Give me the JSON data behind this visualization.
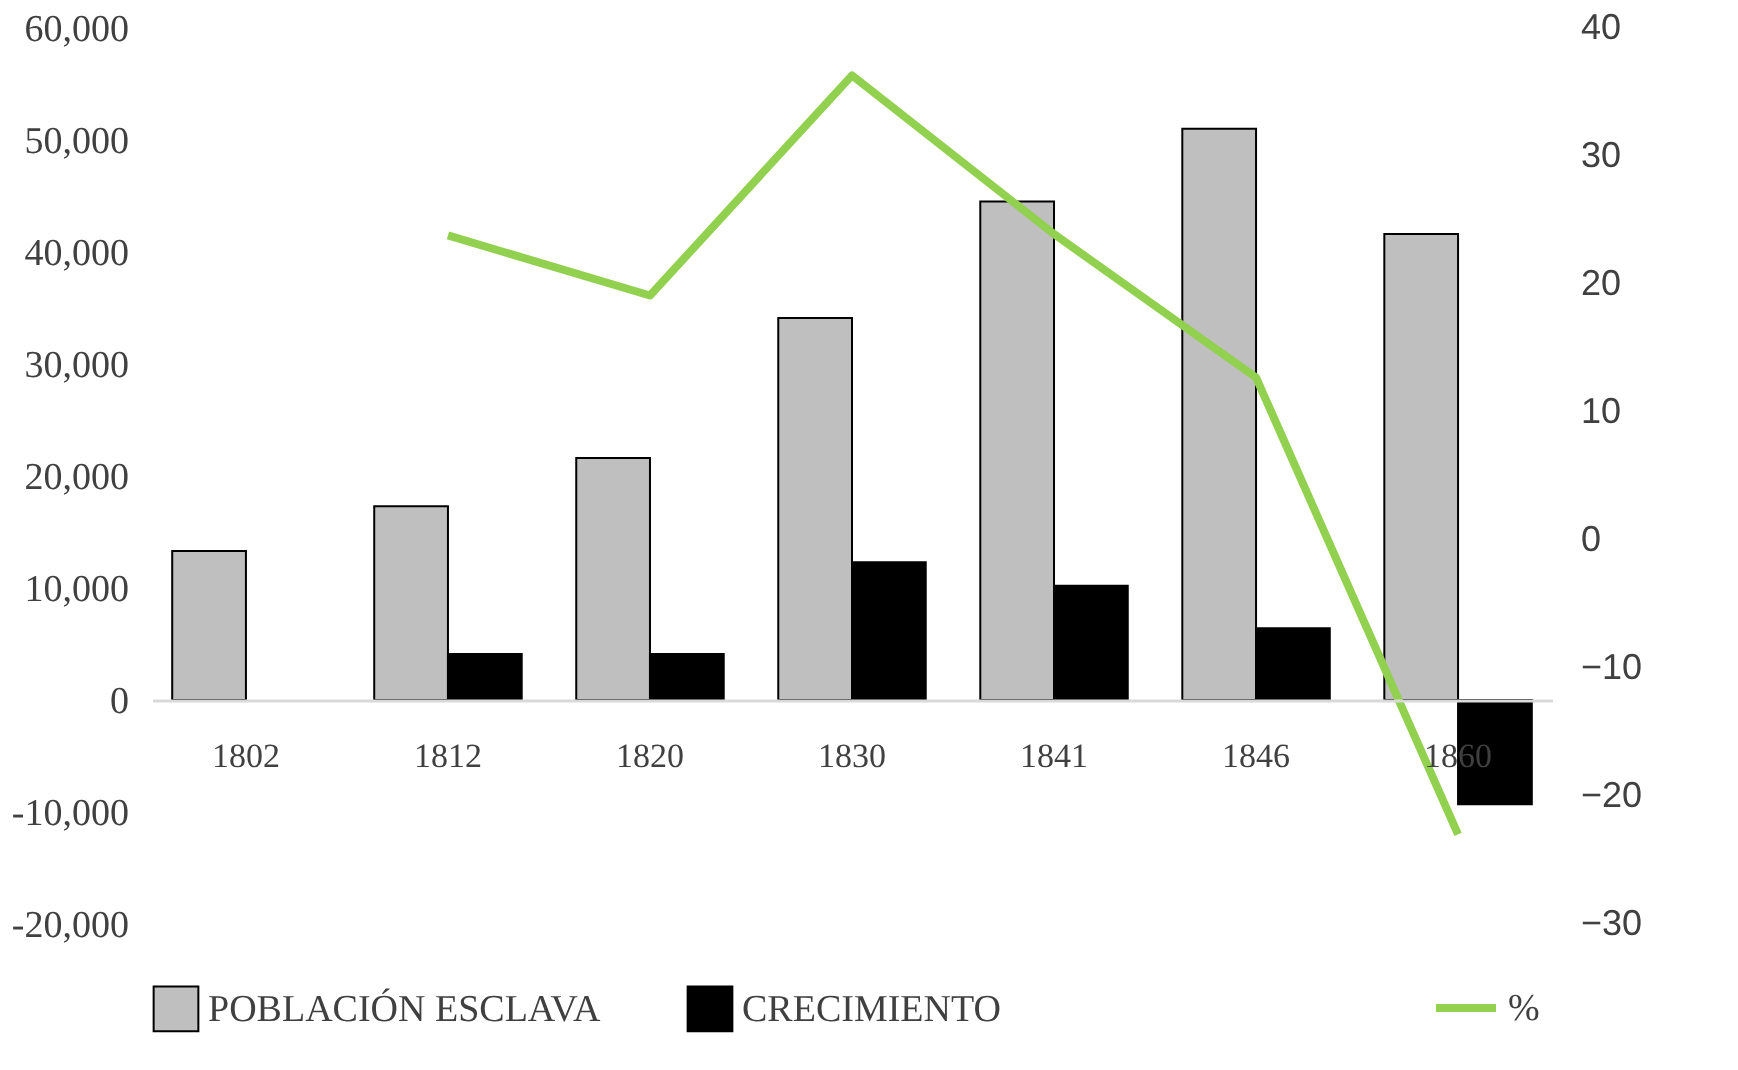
{
  "chart_data": {
    "type": "bar",
    "categories": [
      "1802",
      "1812",
      "1820",
      "1830",
      "1841",
      "1846",
      "1860"
    ],
    "series": [
      {
        "name": "POBLACIÓN ESCLAVA",
        "color": "#bfbfbf",
        "values": [
          13300,
          17300,
          21600,
          34100,
          44500,
          51000,
          41600
        ]
      },
      {
        "name": "CRECIMIENTO",
        "color": "#000000",
        "values": [
          null,
          4100,
          4100,
          12300,
          10200,
          6400,
          -9300
        ]
      },
      {
        "name": "%",
        "type": "line",
        "axis": "y2",
        "color": "#92d050",
        "values": [
          null,
          23.8,
          19.1,
          36.3,
          23.9,
          12.7,
          -23
        ]
      }
    ],
    "ylim": [
      -20000,
      60000
    ],
    "yticks": [
      {
        "value": -20000,
        "label": "-20,000"
      },
      {
        "value": -10000,
        "label": "-10,000"
      },
      0,
      {
        "value": 10000,
        "label": "10,000"
      },
      {
        "value": 20000,
        "label": "20,000"
      },
      {
        "value": 30000,
        "label": "30,000"
      },
      {
        "value": 40000,
        "label": "40,000"
      },
      {
        "value": 50000,
        "label": "50,000"
      },
      {
        "value": 60000,
        "label": "60,000"
      }
    ],
    "y2lim": [
      -30,
      40
    ],
    "y2ticks": [
      -30,
      -20,
      -10,
      0,
      10,
      20,
      30,
      40
    ],
    "grid": false,
    "legend": "bottom",
    "line_style": "solid",
    "marker": "none"
  }
}
